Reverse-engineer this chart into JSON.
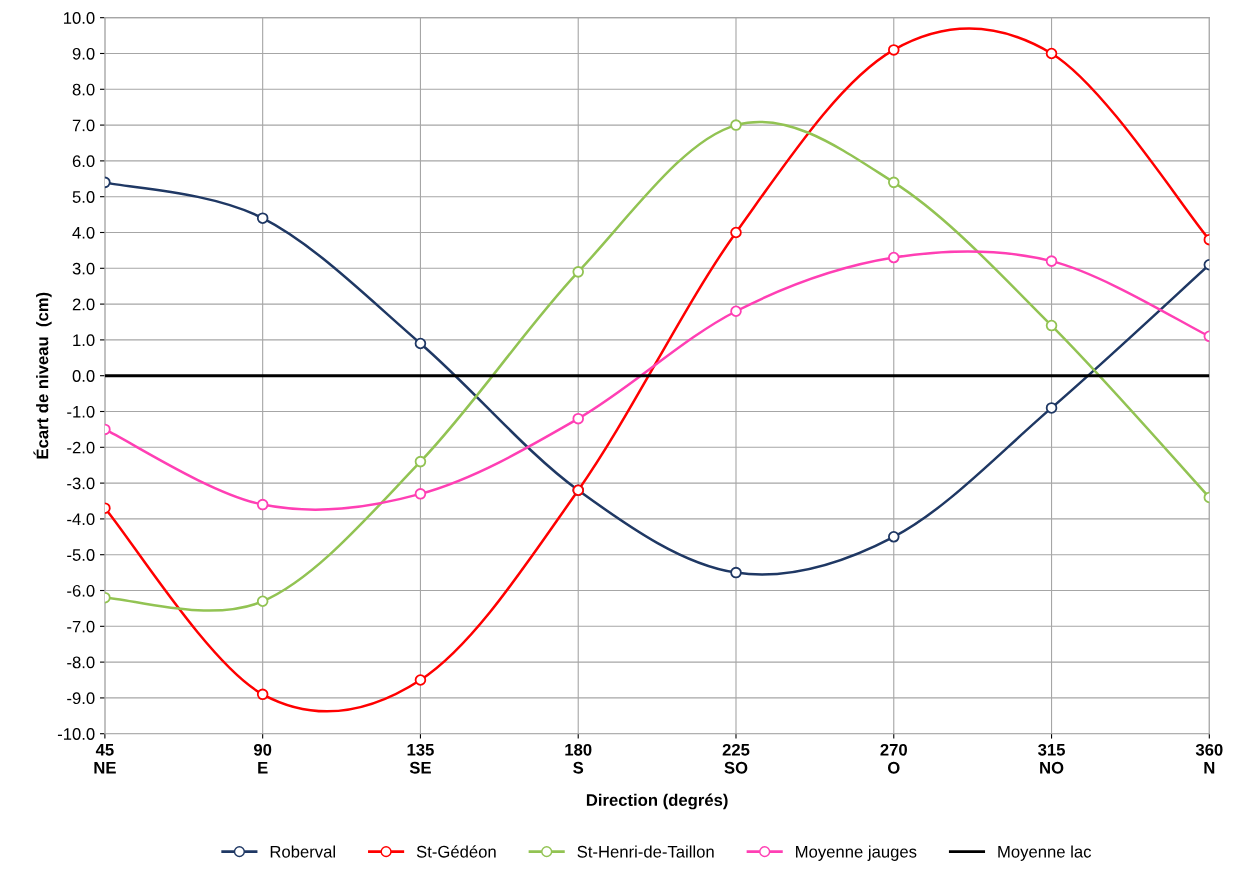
{
  "chart_data": {
    "type": "line",
    "xlabel": "Direction (degrés)",
    "ylabel": "Écart de niveau  (cm)",
    "x": [
      45,
      90,
      135,
      180,
      225,
      270,
      315,
      360
    ],
    "xlim": [
      45,
      360
    ],
    "xticks": [
      {
        "value": 45,
        "label": "45\nNE"
      },
      {
        "value": 90,
        "label": "90\nE"
      },
      {
        "value": 135,
        "label": "135\nSE"
      },
      {
        "value": 180,
        "label": "180\nS"
      },
      {
        "value": 225,
        "label": "225\nSO"
      },
      {
        "value": 270,
        "label": "270\nO"
      },
      {
        "value": 315,
        "label": "315\nNO"
      },
      {
        "value": 360,
        "label": "360\nN"
      }
    ],
    "ylim": [
      -10,
      10
    ],
    "yticks": [
      {
        "value": -10,
        "label": "-10.0"
      },
      {
        "value": -9,
        "label": "-9.0"
      },
      {
        "value": -8,
        "label": "-8.0"
      },
      {
        "value": -7,
        "label": "-7.0"
      },
      {
        "value": -6,
        "label": "-6.0"
      },
      {
        "value": -5,
        "label": "-5.0"
      },
      {
        "value": -4,
        "label": "-4.0"
      },
      {
        "value": -3,
        "label": "-3.0"
      },
      {
        "value": -2,
        "label": "-2.0"
      },
      {
        "value": -1,
        "label": "-1.0"
      },
      {
        "value": 0,
        "label": "0.0"
      },
      {
        "value": 1,
        "label": "1.0"
      },
      {
        "value": 2,
        "label": "2.0"
      },
      {
        "value": 3,
        "label": "3.0"
      },
      {
        "value": 4,
        "label": "4.0"
      },
      {
        "value": 5,
        "label": "5.0"
      },
      {
        "value": 6,
        "label": "6.0"
      },
      {
        "value": 7,
        "label": "7.0"
      },
      {
        "value": 8,
        "label": "8.0"
      },
      {
        "value": 9,
        "label": "9.0"
      },
      {
        "value": 10,
        "label": "10.0"
      }
    ],
    "grid": true,
    "legend": "bottom",
    "series": [
      {
        "name": "Roberval",
        "color": "#1f3864",
        "marker": "circle",
        "values": [
          5.4,
          4.4,
          0.9,
          -3.2,
          -5.5,
          -4.5,
          -0.9,
          3.1
        ]
      },
      {
        "name": "St-Gédéon",
        "color": "#ff0000",
        "marker": "circle",
        "values": [
          -3.7,
          -8.9,
          -8.5,
          -3.2,
          4.0,
          9.1,
          9.0,
          3.8
        ]
      },
      {
        "name": "St-Henri-de-Taillon",
        "color": "#92c353",
        "marker": "circle",
        "values": [
          -6.2,
          -6.3,
          -2.4,
          2.9,
          7.0,
          5.4,
          1.4,
          -3.4
        ]
      },
      {
        "name": "Moyenne jauges",
        "color": "#ff3fb4",
        "marker": "circle",
        "values": [
          -1.5,
          -3.6,
          -3.3,
          -1.2,
          1.8,
          3.3,
          3.2,
          1.1
        ]
      },
      {
        "name": "Moyenne lac",
        "color": "#000000",
        "marker": "none",
        "values": [
          0,
          0,
          0,
          0,
          0,
          0,
          0,
          0
        ]
      }
    ]
  }
}
